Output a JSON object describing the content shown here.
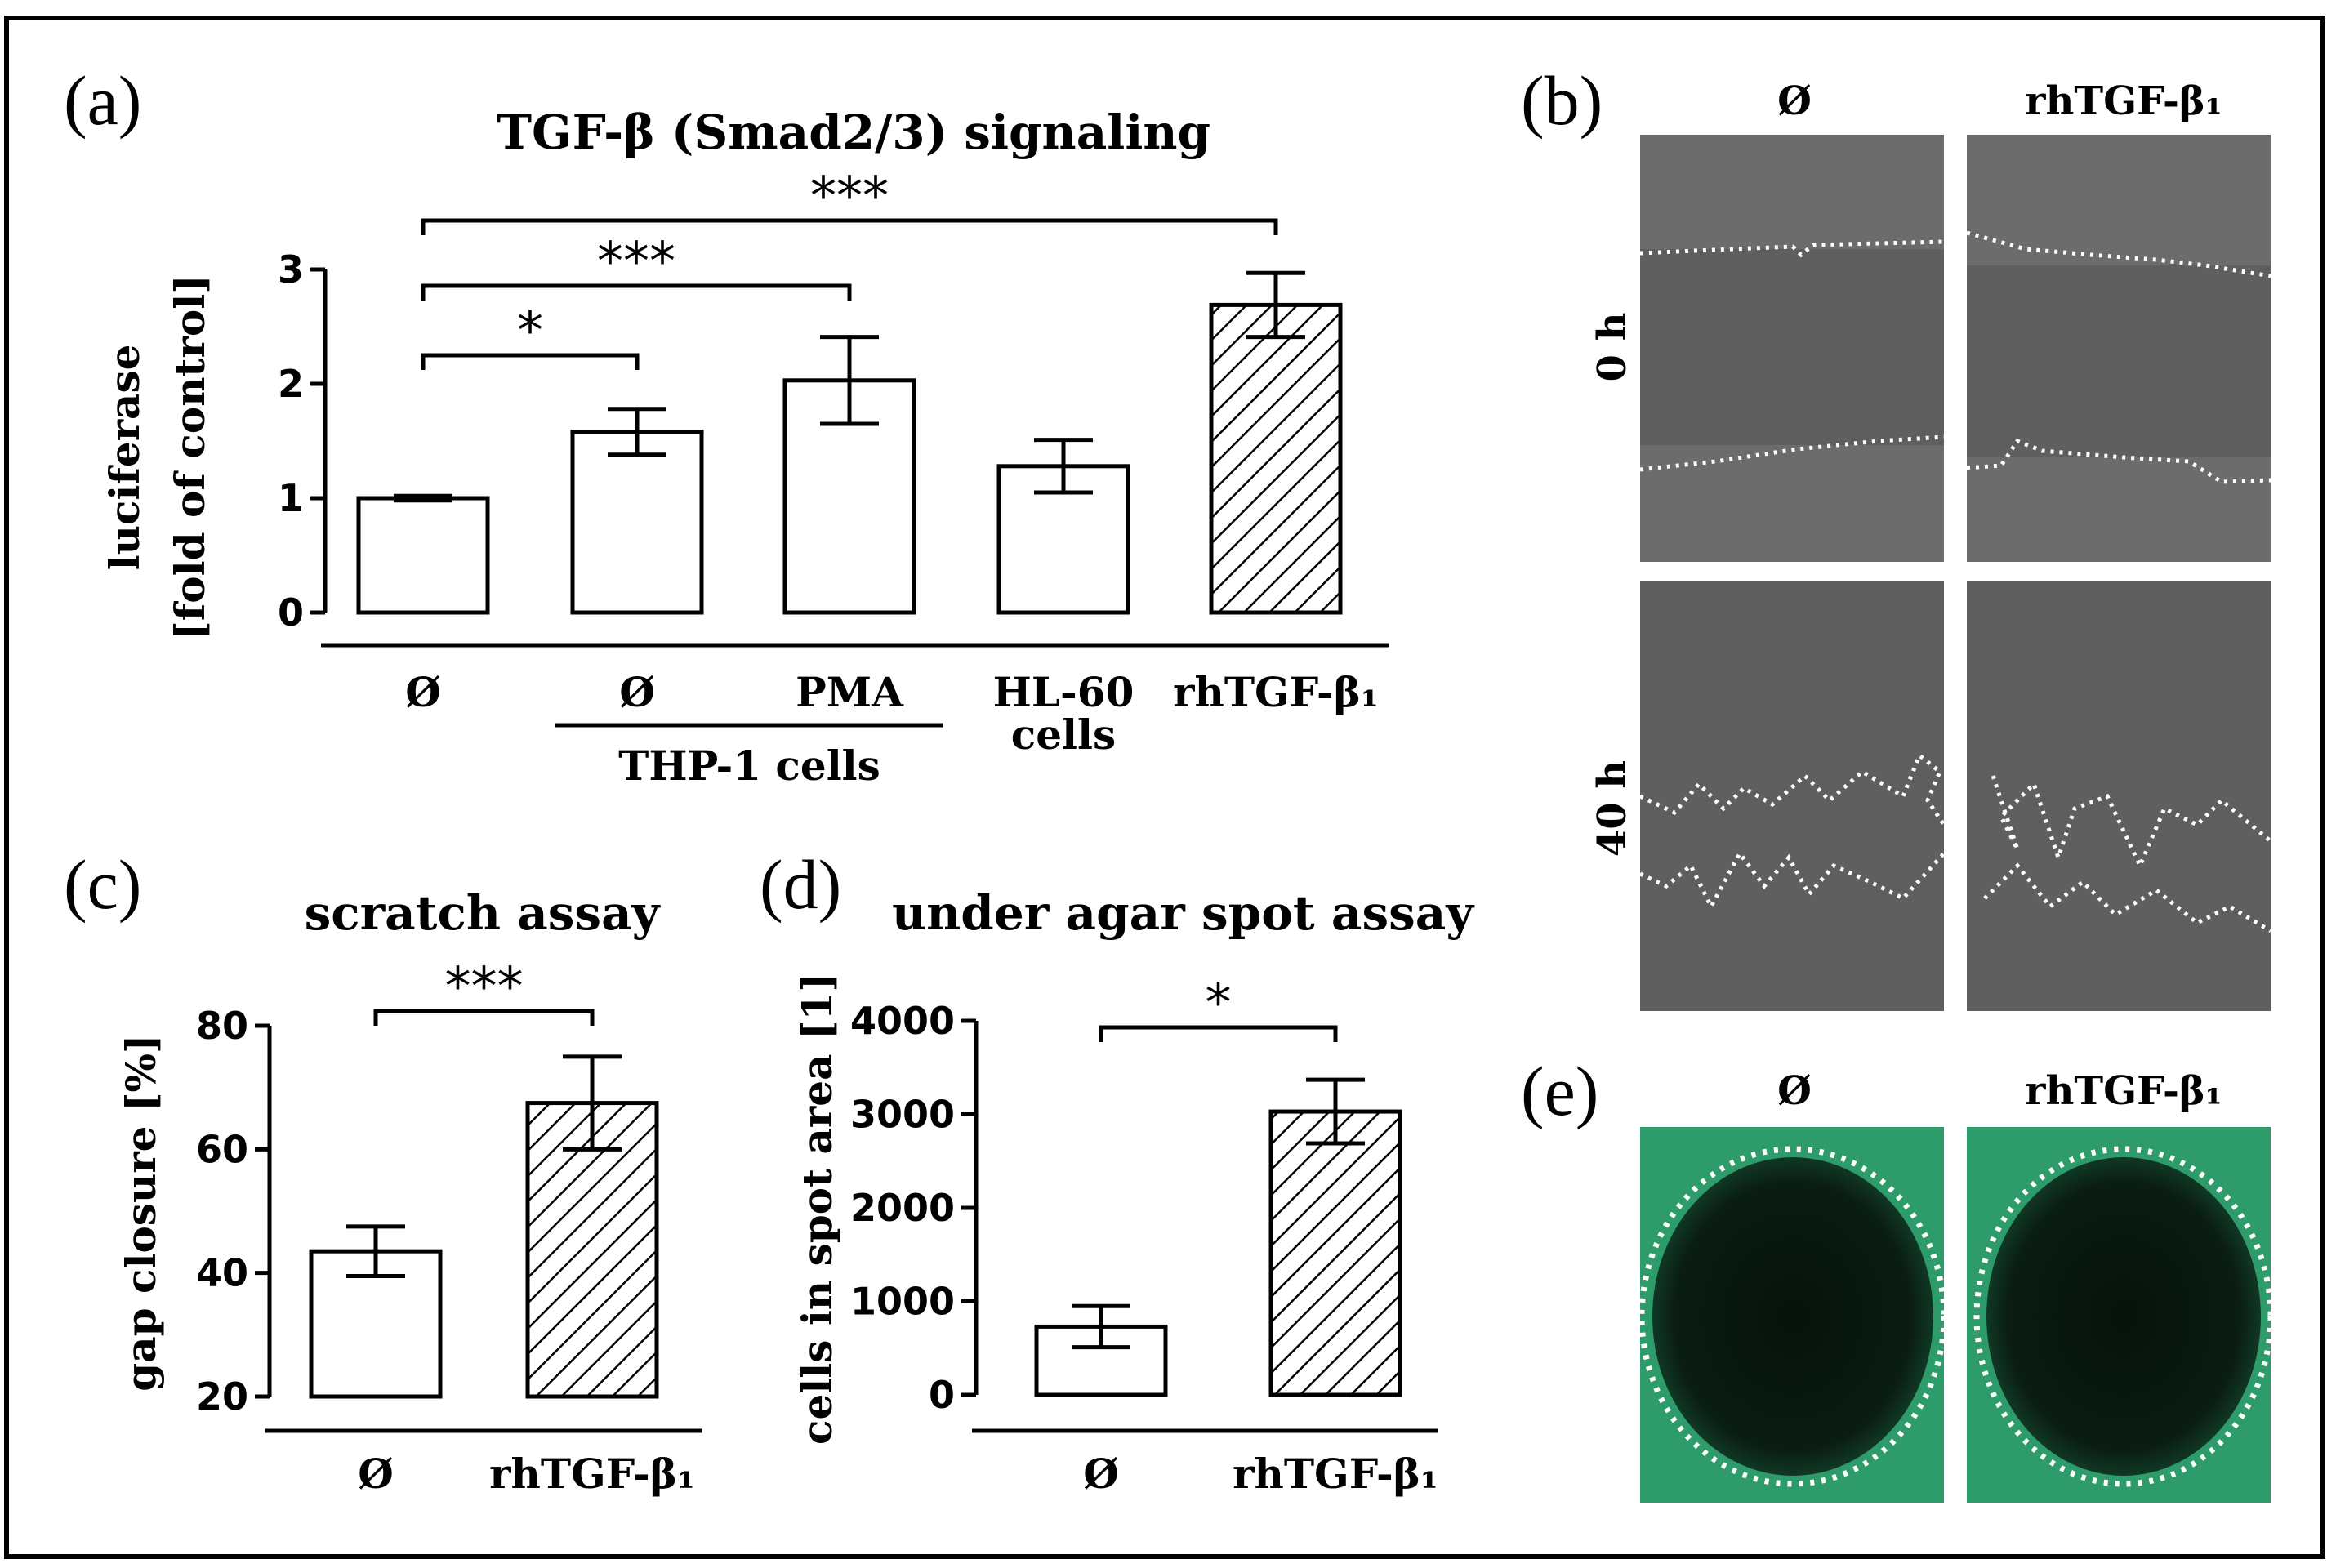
{
  "figure": {
    "panel_letters": [
      "(a)",
      "(b)",
      "(c)",
      "(d)",
      "(e)"
    ]
  },
  "chart_data": [
    {
      "id": "a",
      "type": "bar",
      "title": "TGF-β (Smad2/3) signaling",
      "ylabel": [
        "luciferase",
        "[fold of control]"
      ],
      "ylim": [
        0,
        3
      ],
      "yticks": [
        0,
        1,
        2,
        3
      ],
      "categories": [
        "Ø",
        "Ø",
        "PMA",
        "HL-60\ncells",
        "rhTGF-β₁"
      ],
      "values": [
        1.0,
        1.58,
        2.03,
        1.28,
        2.69
      ],
      "errors": [
        0.02,
        0.2,
        0.38,
        0.23,
        0.28
      ],
      "hatched": [
        false,
        false,
        false,
        false,
        true
      ],
      "group_label": "THP-1 cells",
      "group_span": [
        1,
        2
      ],
      "significance": [
        {
          "from": 0,
          "to": 1,
          "label": "*"
        },
        {
          "from": 0,
          "to": 2,
          "label": "***"
        },
        {
          "from": 0,
          "to": 4,
          "label": "***"
        }
      ]
    },
    {
      "id": "c",
      "type": "bar",
      "title": "scratch assay",
      "ylabel": [
        "gap closure [%]"
      ],
      "ylim": [
        20,
        80
      ],
      "yticks": [
        20,
        40,
        60,
        80
      ],
      "categories": [
        "Ø",
        "rhTGF-β₁"
      ],
      "values": [
        43.5,
        67.5
      ],
      "errors": [
        4,
        7.5
      ],
      "hatched": [
        false,
        true
      ],
      "significance": [
        {
          "from": 0,
          "to": 1,
          "label": "***"
        }
      ]
    },
    {
      "id": "d",
      "type": "bar",
      "title": "under agar spot assay",
      "ylabel": [
        "cells in spot area [1]"
      ],
      "ylim": [
        0,
        4000
      ],
      "yticks": [
        0,
        1000,
        2000,
        3000,
        4000
      ],
      "categories": [
        "Ø",
        "rhTGF-β₁"
      ],
      "values": [
        730,
        3030
      ],
      "errors": [
        220,
        340
      ],
      "hatched": [
        false,
        true
      ],
      "significance": [
        {
          "from": 0,
          "to": 1,
          "label": "*"
        }
      ]
    }
  ],
  "panel_b": {
    "columns": [
      "Ø",
      "rhTGF-β₁"
    ],
    "rows": [
      "0 h",
      "40 h"
    ]
  },
  "panel_e": {
    "columns": [
      "Ø",
      "rhTGF-β₁"
    ]
  },
  "colors": {
    "photo_gray": "#5f5f5f",
    "photo_dark": "#0c1a12",
    "green_cells": "#2e9c6a",
    "dotted_line": "#ffffff"
  }
}
